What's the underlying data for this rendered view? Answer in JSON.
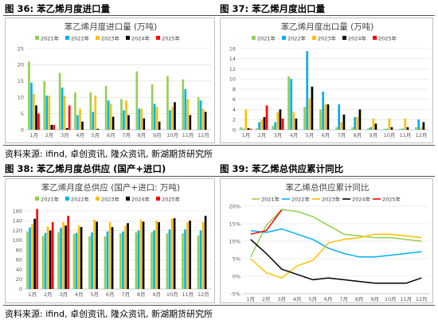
{
  "figures": [
    {
      "label": "图 36:",
      "title": "苯乙烯月度进口量"
    },
    {
      "label": "图 37:",
      "title": "苯乙烯月度出口量"
    },
    {
      "label": "图 38:",
      "title": "苯乙烯月度总供应 (国产+进口)"
    },
    {
      "label": "图 39:",
      "title": "苯乙烯总供应累计同比"
    }
  ],
  "source_text": "资料来源: ifind, 卓创资讯, 隆众资讯, 新湖期货研究所",
  "colors": {
    "2021年": "#92d050",
    "2022年": "#00b0f0",
    "2023年": "#ffc000",
    "2024年": "#000000",
    "2025年": "#ff0000"
  },
  "chart_data": [
    {
      "type": "bar",
      "title": "苯乙烯月度进口量 (万吨)",
      "categories": [
        "1月",
        "2月",
        "3月",
        "4月",
        "5月",
        "6月",
        "7月",
        "8月",
        "9月",
        "10月",
        "11月",
        "12月"
      ],
      "ylim": [
        0,
        25
      ],
      "yticks": [
        0,
        5,
        10,
        15,
        20,
        25
      ],
      "grid": true,
      "legend": "top",
      "series": [
        {
          "name": "2021年",
          "values": [
            21,
            15,
            17.5,
            11.5,
            11.5,
            13.5,
            9.5,
            18,
            14,
            16.5,
            15.5,
            10
          ]
        },
        {
          "name": "2022年",
          "values": [
            14.5,
            10.5,
            13,
            4.5,
            5.5,
            9,
            6,
            6.5,
            8,
            6,
            12.5,
            9
          ]
        },
        {
          "name": "2023年",
          "values": [
            11,
            10.5,
            10.5,
            6.5,
            10.5,
            8,
            9,
            6.5,
            7,
            7,
            9.5,
            6.5
          ]
        },
        {
          "name": "2024年",
          "values": [
            7.5,
            1.5,
            0.5,
            2.5,
            0.3,
            4,
            4.5,
            3.5,
            2.5,
            8.5,
            4.5,
            5.5
          ]
        },
        {
          "name": "2025年",
          "values": [
            5,
            1.5,
            7.5,
            null,
            null,
            null,
            null,
            null,
            null,
            null,
            null,
            null
          ]
        }
      ]
    },
    {
      "type": "bar",
      "title": "苯乙烯月度出口量 (万吨)",
      "categories": [
        "1月",
        "2月",
        "3月",
        "4月",
        "5月",
        "6月",
        "7月",
        "8月",
        "9月",
        "10月",
        "11月",
        "12月"
      ],
      "ylim": [
        0,
        16
      ],
      "yticks": [
        0,
        2,
        4,
        6,
        8,
        10,
        12,
        14,
        16
      ],
      "grid": true,
      "legend": "top",
      "series": [
        {
          "name": "2021年",
          "values": [
            0.5,
            0.3,
            0.8,
            10.5,
            4.5,
            4,
            0.5,
            0.5,
            0.3,
            0.2,
            0.2,
            0.5
          ]
        },
        {
          "name": "2022年",
          "values": [
            0.2,
            1.5,
            1.5,
            10,
            15.5,
            7.5,
            5,
            2.5,
            0.5,
            0.2,
            0.2,
            2
          ]
        },
        {
          "name": "2023年",
          "values": [
            4,
            2,
            3.5,
            3.5,
            6.2,
            5,
            1.5,
            2.5,
            2.2,
            2.2,
            2.2,
            0.5
          ]
        },
        {
          "name": "2024年",
          "values": [
            0.3,
            2.5,
            4,
            2.2,
            8.5,
            5,
            3,
            4,
            1.2,
            0.5,
            0.5,
            1.5
          ]
        },
        {
          "name": "2025年",
          "values": [
            0.2,
            4.8,
            2.2,
            null,
            null,
            null,
            null,
            null,
            null,
            null,
            null,
            null
          ]
        }
      ]
    },
    {
      "type": "bar",
      "title": "苯乙烯月度总供应 (国产+进口: 万吨)",
      "categories": [
        "1月",
        "2月",
        "3月",
        "4月",
        "5月",
        "6月",
        "7月",
        "8月",
        "9月",
        "10月",
        "11月",
        "12月"
      ],
      "ylim": [
        0,
        160
      ],
      "yticks": [
        0,
        20,
        40,
        60,
        80,
        100,
        120,
        140,
        160
      ],
      "grid": true,
      "legend": "top",
      "series": [
        {
          "name": "2021年",
          "values": [
            118,
            109,
            116,
            113,
            108,
            108,
            114,
            116,
            116,
            114,
            114,
            110
          ]
        },
        {
          "name": "2022年",
          "values": [
            126,
            115,
            125,
            115,
            116,
            118,
            118,
            120,
            120,
            122,
            122,
            120
          ]
        },
        {
          "name": "2023年",
          "values": [
            133,
            128,
            137,
            130,
            142,
            137,
            130,
            142,
            140,
            144,
            137,
            137
          ]
        },
        {
          "name": "2024年",
          "values": [
            144,
            120,
            130,
            127,
            138,
            127,
            135,
            138,
            137,
            145,
            140,
            150
          ]
        },
        {
          "name": "2025年",
          "values": [
            164,
            137,
            150,
            null,
            null,
            null,
            null,
            null,
            null,
            null,
            null,
            null
          ]
        }
      ]
    },
    {
      "type": "line",
      "title": "苯乙烯总供应累计同比",
      "categories": [
        "1月",
        "2月",
        "3月",
        "4月",
        "5月",
        "6月",
        "7月",
        "8月",
        "9月",
        "10月",
        "11月",
        "12月"
      ],
      "ylim": [
        -5,
        20
      ],
      "yticks": [
        -5,
        0,
        5,
        10,
        15,
        20
      ],
      "yticklabels": [
        "-5%",
        "0%",
        "5%",
        "10%",
        "15%",
        "20%"
      ],
      "grid": true,
      "legend": "top",
      "series": [
        {
          "name": "2021年",
          "values": [
            5.5,
            14.5,
            19,
            18.5,
            17,
            14.5,
            12,
            11.5,
            11,
            11,
            10.5,
            10
          ]
        },
        {
          "name": "2022年",
          "values": [
            13,
            12.5,
            13.5,
            12,
            10.5,
            8,
            6.5,
            5.5,
            5.5,
            6,
            6.5,
            7
          ]
        },
        {
          "name": "2023年",
          "values": [
            5,
            1,
            -0.5,
            3,
            4.5,
            9.5,
            10.5,
            11,
            12,
            12,
            11.5,
            11
          ]
        },
        {
          "name": "2024年",
          "values": [
            10.5,
            6.5,
            2,
            0.5,
            -1,
            -0.5,
            -1,
            -1.5,
            -2,
            -2,
            -2,
            -0.5
          ]
        },
        {
          "name": "2025年",
          "values": [
            12,
            13,
            19,
            null,
            null,
            null,
            null,
            null,
            null,
            null,
            null,
            null
          ]
        }
      ]
    }
  ]
}
